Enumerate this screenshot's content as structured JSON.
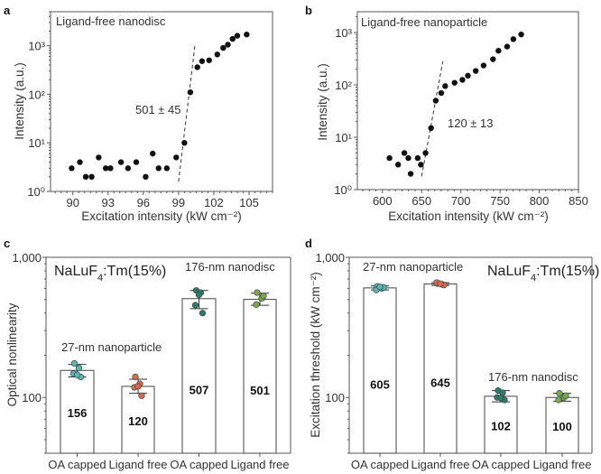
{
  "chart_data": [
    {
      "panel": "a",
      "type": "scatter",
      "title": "Ligand-free nanodisc",
      "xlabel": "Excitation intensity (kW cm⁻²)",
      "ylabel": "Intensity (a.u.)",
      "xscale": "linear",
      "yscale": "log",
      "xlim": [
        88.1,
        107
      ],
      "ylim": [
        1,
        5000
      ],
      "xticks": [
        90,
        93,
        96,
        99,
        102,
        105
      ],
      "yticks": [
        {
          "value": 1,
          "label": "10⁰"
        },
        {
          "value": 10,
          "label": "10¹"
        },
        {
          "value": 100,
          "label": "10²"
        },
        {
          "value": 1000,
          "label": "10³"
        }
      ],
      "annotation": "501 ± 45",
      "fit_line": {
        "x": [
          99.0,
          100.4
        ],
        "y": [
          1.6,
          1050
        ]
      },
      "points": [
        {
          "x": 89.9,
          "y": 3
        },
        {
          "x": 90.6,
          "y": 4
        },
        {
          "x": 91.1,
          "y": 2
        },
        {
          "x": 91.6,
          "y": 2
        },
        {
          "x": 92.2,
          "y": 5
        },
        {
          "x": 92.8,
          "y": 3
        },
        {
          "x": 93.2,
          "y": 3
        },
        {
          "x": 94.1,
          "y": 4
        },
        {
          "x": 94.7,
          "y": 3
        },
        {
          "x": 95.4,
          "y": 4
        },
        {
          "x": 96.2,
          "y": 2
        },
        {
          "x": 96.8,
          "y": 6
        },
        {
          "x": 97.3,
          "y": 3
        },
        {
          "x": 98.0,
          "y": 3
        },
        {
          "x": 98.8,
          "y": 5
        },
        {
          "x": 99.5,
          "y": 10
        },
        {
          "x": 100.0,
          "y": 110
        },
        {
          "x": 100.6,
          "y": 360
        },
        {
          "x": 101.0,
          "y": 480
        },
        {
          "x": 101.6,
          "y": 500
        },
        {
          "x": 102.3,
          "y": 660
        },
        {
          "x": 102.8,
          "y": 900
        },
        {
          "x": 103.2,
          "y": 1050
        },
        {
          "x": 103.6,
          "y": 1380
        },
        {
          "x": 104.0,
          "y": 1600
        },
        {
          "x": 104.8,
          "y": 1700
        }
      ]
    },
    {
      "panel": "b",
      "type": "scatter",
      "title": "Ligand-free nanoparticle",
      "xlabel": "Excitation intensity (kW cm⁻²)",
      "ylabel": "Intensity (a.u.)",
      "xscale": "linear",
      "yscale": "log",
      "xlim": [
        568,
        850
      ],
      "ylim": [
        1,
        2500
      ],
      "xticks": [
        600,
        650,
        700,
        750,
        800,
        850
      ],
      "yticks": [
        {
          "value": 1,
          "label": "10⁰"
        },
        {
          "value": 10,
          "label": "10¹"
        },
        {
          "value": 100,
          "label": "10²"
        },
        {
          "value": 1000,
          "label": "10³"
        }
      ],
      "annotation": "120 ± 13",
      "fit_line": {
        "x": [
          650,
          677
        ],
        "y": [
          1.8,
          280
        ]
      },
      "points": [
        {
          "x": 609,
          "y": 4
        },
        {
          "x": 620,
          "y": 3
        },
        {
          "x": 628,
          "y": 5
        },
        {
          "x": 633,
          "y": 4
        },
        {
          "x": 636,
          "y": 2
        },
        {
          "x": 645,
          "y": 4
        },
        {
          "x": 649,
          "y": 3
        },
        {
          "x": 655,
          "y": 5
        },
        {
          "x": 662,
          "y": 15
        },
        {
          "x": 668,
          "y": 50
        },
        {
          "x": 675,
          "y": 70
        },
        {
          "x": 680,
          "y": 95
        },
        {
          "x": 692,
          "y": 110
        },
        {
          "x": 702,
          "y": 125
        },
        {
          "x": 709,
          "y": 150
        },
        {
          "x": 719,
          "y": 185
        },
        {
          "x": 729,
          "y": 235
        },
        {
          "x": 741,
          "y": 310
        },
        {
          "x": 748,
          "y": 450
        },
        {
          "x": 759,
          "y": 540
        },
        {
          "x": 767,
          "y": 750
        },
        {
          "x": 777,
          "y": 920
        }
      ]
    },
    {
      "panel": "c",
      "type": "bar",
      "ylabel": "Optical nonlinearity",
      "yscale": "log",
      "ylim": [
        40,
        1000
      ],
      "yticks": [
        {
          "value": 100,
          "label": "100"
        },
        {
          "value": 1000,
          "label": "1,000"
        }
      ],
      "categories": [
        "OA capped",
        "Ligand free",
        "OA capped",
        "Ligand free"
      ],
      "values": [
        156,
        120,
        507,
        501
      ],
      "value_labels": [
        "156",
        "120",
        "507",
        "501"
      ],
      "errors": [
        [
          140,
          172
        ],
        [
          107,
          135
        ],
        [
          430,
          580
        ],
        [
          455,
          555
        ]
      ],
      "scatter_points": [
        [
          175,
          162,
          148,
          140,
          145
        ],
        [
          140,
          125,
          118,
          103,
          120
        ],
        [
          580,
          560,
          455,
          400,
          540
        ],
        [
          560,
          510,
          460,
          530
        ]
      ],
      "point_colors": [
        "#5fb3b3",
        "#d9694a",
        "#2f7a6a",
        "#7aa84a"
      ],
      "annotations": [
        {
          "text": "NaLuF₄:Tm(15%)",
          "kind": "formula"
        },
        {
          "text": "176-nm nanodisc",
          "kind": "group"
        },
        {
          "text": "27-nm nanoparticle",
          "kind": "group"
        }
      ]
    },
    {
      "panel": "d",
      "type": "bar",
      "ylabel": "Excitation threshold (kW cm⁻²)",
      "yscale": "log",
      "ylim": [
        40,
        1000
      ],
      "yticks": [
        {
          "value": 100,
          "label": "100"
        },
        {
          "value": 1000,
          "label": "1,000"
        }
      ],
      "categories": [
        "OA capped",
        "Ligand free",
        "OA capped",
        "Ligand free"
      ],
      "values": [
        605,
        645,
        102,
        100
      ],
      "value_labels": [
        "605",
        "645",
        "102",
        "100"
      ],
      "errors": [
        [
          585,
          625
        ],
        [
          630,
          660
        ],
        [
          93,
          112
        ],
        [
          94,
          107
        ]
      ],
      "scatter_points": [
        [
          620,
          600,
          585,
          610,
          615
        ],
        [
          650,
          640,
          660,
          635,
          648
        ],
        [
          112,
          108,
          100,
          96,
          99
        ],
        [
          107,
          100,
          96,
          103
        ]
      ],
      "point_colors": [
        "#5fb3b3",
        "#d9694a",
        "#2f7a6a",
        "#7aa84a"
      ],
      "annotations": [
        {
          "text": "27-nm nanoparticle",
          "kind": "group"
        },
        {
          "text": "NaLuF₄:Tm(15%)",
          "kind": "formula"
        },
        {
          "text": "176-nm nanodisc",
          "kind": "group"
        }
      ]
    }
  ]
}
